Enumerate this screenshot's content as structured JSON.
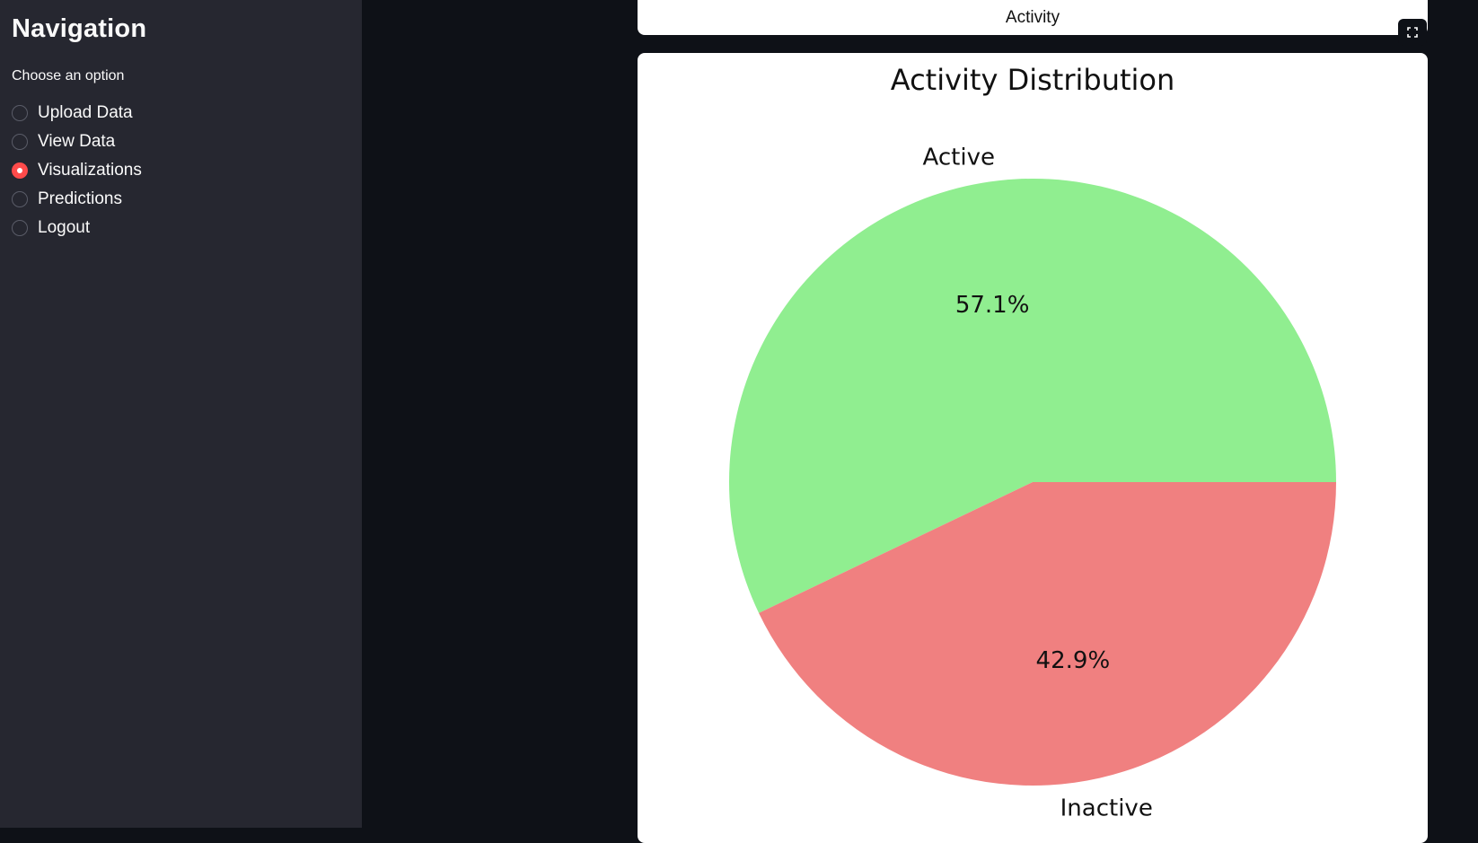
{
  "sidebar": {
    "title": "Navigation",
    "radio_label": "Choose an option",
    "options": [
      {
        "label": "Upload Data",
        "selected": false
      },
      {
        "label": "View Data",
        "selected": false
      },
      {
        "label": "Visualizations",
        "selected": true
      },
      {
        "label": "Predictions",
        "selected": false
      },
      {
        "label": "Logout",
        "selected": false
      }
    ]
  },
  "main": {
    "top_card_text": "Activity",
    "fullscreen_icon": "fullscreen-icon"
  },
  "colors": {
    "accent": "#ff4b4b",
    "background": "#0e1117",
    "sidebar": "#262730"
  },
  "chart_data": {
    "type": "pie",
    "title": "Activity Distribution",
    "categories": [
      "Active",
      "Inactive"
    ],
    "values": [
      57.1,
      42.9
    ],
    "data_labels": [
      "57.1%",
      "42.9%"
    ],
    "colors": [
      "#90ee90",
      "#f08080"
    ],
    "start_angle": 0
  }
}
